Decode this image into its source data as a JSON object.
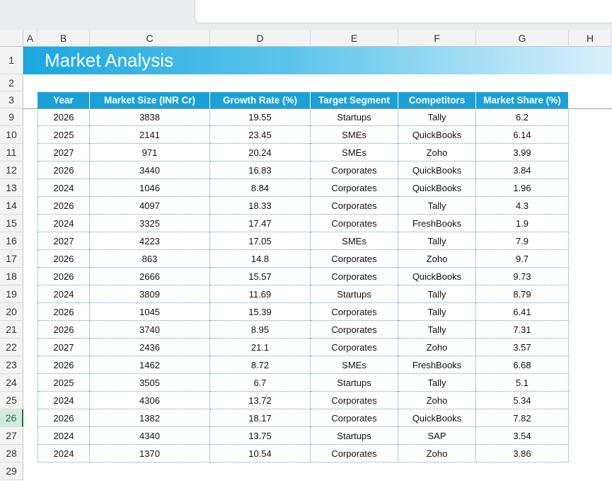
{
  "columns": [
    "A",
    "B",
    "C",
    "D",
    "E",
    "F",
    "G",
    "H"
  ],
  "row_numbers": [
    1,
    2,
    3,
    9,
    10,
    11,
    12,
    13,
    14,
    15,
    16,
    17,
    18,
    19,
    20,
    21,
    22,
    23,
    24,
    25,
    26,
    27,
    28,
    29
  ],
  "title": "Market Analysis",
  "table": {
    "header": [
      "Year",
      "Market Size (INR Cr)",
      "Growth Rate (%)",
      "Target Segment",
      "Competitors",
      "Market Share (%)"
    ],
    "rows": [
      [
        2026,
        3838,
        19.55,
        "Startups",
        "Tally",
        6.2
      ],
      [
        2025,
        2141,
        23.45,
        "SMEs",
        "QuickBooks",
        6.14
      ],
      [
        2027,
        971,
        20.24,
        "SMEs",
        "Zoho",
        3.99
      ],
      [
        2026,
        3440,
        16.83,
        "Corporates",
        "QuickBooks",
        3.84
      ],
      [
        2024,
        1046,
        8.84,
        "Corporates",
        "QuickBooks",
        1.96
      ],
      [
        2026,
        4097,
        18.33,
        "Corporates",
        "Tally",
        4.3
      ],
      [
        2024,
        3325,
        17.47,
        "Corporates",
        "FreshBooks",
        1.9
      ],
      [
        2027,
        4223,
        17.05,
        "SMEs",
        "Tally",
        7.9
      ],
      [
        2026,
        863,
        14.8,
        "Corporates",
        "Zoho",
        9.7
      ],
      [
        2026,
        2666,
        15.57,
        "Corporates",
        "QuickBooks",
        9.73
      ],
      [
        2024,
        3809,
        11.69,
        "Startups",
        "Tally",
        8.79
      ],
      [
        2026,
        1045,
        15.39,
        "Corporates",
        "Tally",
        6.41
      ],
      [
        2026,
        3740,
        8.95,
        "Corporates",
        "Tally",
        7.31
      ],
      [
        2027,
        2436,
        21.1,
        "Corporates",
        "Zoho",
        3.57
      ],
      [
        2026,
        1462,
        8.72,
        "SMEs",
        "FreshBooks",
        6.68
      ],
      [
        2025,
        3505,
        6.7,
        "Startups",
        "Tally",
        5.1
      ],
      [
        2024,
        4306,
        13.72,
        "Corporates",
        "Zoho",
        5.34
      ],
      [
        2026,
        1382,
        18.17,
        "Corporates",
        "QuickBooks",
        7.82
      ],
      [
        2024,
        4340,
        13.75,
        "Startups",
        "SAP",
        3.54
      ],
      [
        2024,
        1370,
        10.54,
        "Corporates",
        "Zoho",
        3.86
      ]
    ]
  }
}
